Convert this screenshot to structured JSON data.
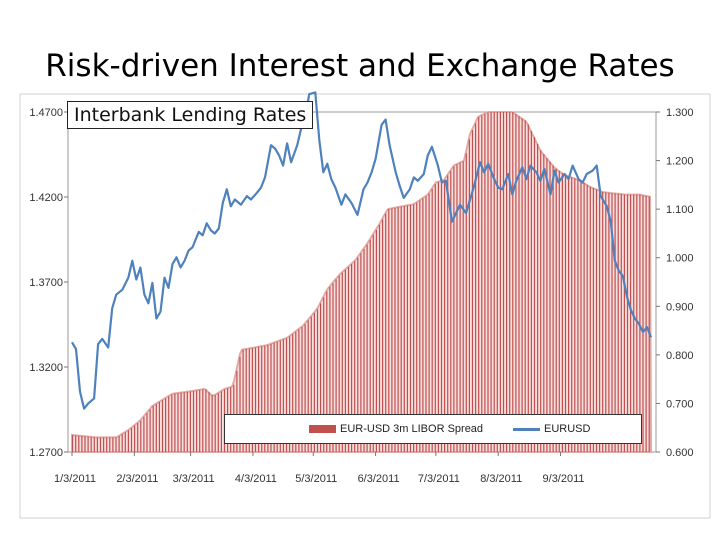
{
  "slide_title": "Risk-driven Interest and Exchange Rates",
  "chart_data": {
    "type": "bar",
    "title": "Interbank Lending Rates",
    "x_ticks": [
      "1/3/2011",
      "2/3/2011",
      "3/3/2011",
      "4/3/2011",
      "5/3/2011",
      "6/3/2011",
      "7/3/2011",
      "8/3/2011",
      "9/3/2011"
    ],
    "left_axis": {
      "ticks": [
        "1.2700",
        "1.3200",
        "1.3700",
        "1.4200",
        "1.4700"
      ],
      "ylim": [
        1.27,
        1.47
      ]
    },
    "right_axis": {
      "ticks": [
        "0.600",
        "0.700",
        "0.800",
        "0.900",
        "1.000",
        "1.100",
        "1.200",
        "1.300"
      ],
      "ylim": [
        0.6,
        1.3
      ]
    },
    "legend_position": "bottom-center",
    "grid": false,
    "series": [
      {
        "name": "EUR-USD 3m LIBOR Spread",
        "type": "bar",
        "axis": "right",
        "color": "#c0504d",
        "points": [
          [
            "2011-01-03",
            0.635
          ],
          [
            "2011-01-15",
            0.63
          ],
          [
            "2011-01-25",
            0.63
          ],
          [
            "2011-01-31",
            0.645
          ],
          [
            "2011-02-06",
            0.665
          ],
          [
            "2011-02-12",
            0.695
          ],
          [
            "2011-02-22",
            0.72
          ],
          [
            "2011-03-03",
            0.725
          ],
          [
            "2011-03-10",
            0.73
          ],
          [
            "2011-03-14",
            0.715
          ],
          [
            "2011-03-20",
            0.73
          ],
          [
            "2011-03-24",
            0.735
          ],
          [
            "2011-03-28",
            0.81
          ],
          [
            "2011-04-10",
            0.82
          ],
          [
            "2011-04-20",
            0.835
          ],
          [
            "2011-04-28",
            0.86
          ],
          [
            "2011-05-05",
            0.895
          ],
          [
            "2011-05-10",
            0.935
          ],
          [
            "2011-05-16",
            0.965
          ],
          [
            "2011-05-24",
            0.995
          ],
          [
            "2011-05-30",
            1.03
          ],
          [
            "2011-06-05",
            1.07
          ],
          [
            "2011-06-09",
            1.1
          ],
          [
            "2011-06-15",
            1.105
          ],
          [
            "2011-06-22",
            1.11
          ],
          [
            "2011-06-29",
            1.13
          ],
          [
            "2011-07-03",
            1.155
          ],
          [
            "2011-07-07",
            1.16
          ],
          [
            "2011-07-12",
            1.19
          ],
          [
            "2011-07-17",
            1.2
          ],
          [
            "2011-07-20",
            1.255
          ],
          [
            "2011-07-24",
            1.29
          ],
          [
            "2011-07-29",
            1.3
          ],
          [
            "2011-08-05",
            1.3
          ],
          [
            "2011-08-10",
            1.3
          ],
          [
            "2011-08-17",
            1.28
          ],
          [
            "2011-08-24",
            1.22
          ],
          [
            "2011-08-31",
            1.185
          ],
          [
            "2011-09-05",
            1.17
          ],
          [
            "2011-09-12",
            1.16
          ],
          [
            "2011-09-18",
            1.145
          ],
          [
            "2011-09-24",
            1.135
          ],
          [
            "2011-10-05",
            1.13
          ],
          [
            "2011-10-12",
            1.13
          ],
          [
            "2011-10-18",
            1.125
          ]
        ]
      },
      {
        "name": "EURUSD",
        "type": "line",
        "axis": "left",
        "color": "#4f81bd",
        "points": [
          [
            "2011-01-03",
            1.3345
          ],
          [
            "2011-01-05",
            1.3305
          ],
          [
            "2011-01-07",
            1.3055
          ],
          [
            "2011-01-09",
            1.2955
          ],
          [
            "2011-01-11",
            1.2985
          ],
          [
            "2011-01-14",
            1.3015
          ],
          [
            "2011-01-16",
            1.3335
          ],
          [
            "2011-01-18",
            1.3365
          ],
          [
            "2011-01-21",
            1.3315
          ],
          [
            "2011-01-23",
            1.3545
          ],
          [
            "2011-01-25",
            1.3625
          ],
          [
            "2011-01-28",
            1.3655
          ],
          [
            "2011-01-31",
            1.3725
          ],
          [
            "2011-02-02",
            1.3825
          ],
          [
            "2011-02-04",
            1.3715
          ],
          [
            "2011-02-06",
            1.3785
          ],
          [
            "2011-02-08",
            1.3625
          ],
          [
            "2011-02-10",
            1.3575
          ],
          [
            "2011-02-12",
            1.3695
          ],
          [
            "2011-02-14",
            1.3485
          ],
          [
            "2011-02-16",
            1.3525
          ],
          [
            "2011-02-18",
            1.3725
          ],
          [
            "2011-02-20",
            1.3665
          ],
          [
            "2011-02-22",
            1.3805
          ],
          [
            "2011-02-24",
            1.3845
          ],
          [
            "2011-02-26",
            1.3785
          ],
          [
            "2011-02-28",
            1.3825
          ],
          [
            "2011-03-02",
            1.3885
          ],
          [
            "2011-03-04",
            1.3905
          ],
          [
            "2011-03-07",
            1.3995
          ],
          [
            "2011-03-09",
            1.3975
          ],
          [
            "2011-03-11",
            1.4045
          ],
          [
            "2011-03-13",
            1.4005
          ],
          [
            "2011-03-15",
            1.3985
          ],
          [
            "2011-03-17",
            1.4015
          ],
          [
            "2011-03-19",
            1.4165
          ],
          [
            "2011-03-21",
            1.4245
          ],
          [
            "2011-03-23",
            1.4145
          ],
          [
            "2011-03-25",
            1.4185
          ],
          [
            "2011-03-28",
            1.4155
          ],
          [
            "2011-03-31",
            1.4205
          ],
          [
            "2011-04-02",
            1.4185
          ],
          [
            "2011-04-05",
            1.4225
          ],
          [
            "2011-04-07",
            1.4255
          ],
          [
            "2011-04-09",
            1.4315
          ],
          [
            "2011-04-12",
            1.4505
          ],
          [
            "2011-04-14",
            1.4485
          ],
          [
            "2011-04-16",
            1.4445
          ],
          [
            "2011-04-18",
            1.4385
          ],
          [
            "2011-04-20",
            1.4515
          ],
          [
            "2011-04-22",
            1.4405
          ],
          [
            "2011-04-25",
            1.4505
          ],
          [
            "2011-04-27",
            1.4605
          ],
          [
            "2011-04-29",
            1.4665
          ],
          [
            "2011-05-01",
            1.4805
          ],
          [
            "2011-05-04",
            1.4815
          ],
          [
            "2011-05-06",
            1.4535
          ],
          [
            "2011-05-08",
            1.4345
          ],
          [
            "2011-05-10",
            1.4395
          ],
          [
            "2011-05-12",
            1.4305
          ],
          [
            "2011-05-14",
            1.4255
          ],
          [
            "2011-05-17",
            1.4155
          ],
          [
            "2011-05-19",
            1.4215
          ],
          [
            "2011-05-22",
            1.4165
          ],
          [
            "2011-05-25",
            1.4095
          ],
          [
            "2011-05-28",
            1.4245
          ],
          [
            "2011-05-30",
            1.4285
          ],
          [
            "2011-06-01",
            1.4345
          ],
          [
            "2011-06-03",
            1.4425
          ],
          [
            "2011-06-06",
            1.4625
          ],
          [
            "2011-06-08",
            1.4655
          ],
          [
            "2011-06-10",
            1.4505
          ],
          [
            "2011-06-13",
            1.4345
          ],
          [
            "2011-06-15",
            1.4265
          ],
          [
            "2011-06-17",
            1.4195
          ],
          [
            "2011-06-20",
            1.4245
          ],
          [
            "2011-06-22",
            1.4315
          ],
          [
            "2011-06-24",
            1.4295
          ],
          [
            "2011-06-27",
            1.4335
          ],
          [
            "2011-06-29",
            1.4445
          ],
          [
            "2011-07-01",
            1.4495
          ],
          [
            "2011-07-04",
            1.4385
          ],
          [
            "2011-07-06",
            1.4285
          ],
          [
            "2011-07-08",
            1.4295
          ],
          [
            "2011-07-11",
            1.4055
          ],
          [
            "2011-07-13",
            1.4105
          ],
          [
            "2011-07-15",
            1.4155
          ],
          [
            "2011-07-18",
            1.4105
          ],
          [
            "2011-07-20",
            1.4185
          ],
          [
            "2011-07-22",
            1.4265
          ],
          [
            "2011-07-25",
            1.4405
          ],
          [
            "2011-07-27",
            1.4345
          ],
          [
            "2011-07-29",
            1.4395
          ],
          [
            "2011-08-01",
            1.4305
          ],
          [
            "2011-08-03",
            1.4255
          ],
          [
            "2011-08-05",
            1.4245
          ],
          [
            "2011-08-08",
            1.4335
          ],
          [
            "2011-08-10",
            1.4215
          ],
          [
            "2011-08-12",
            1.4295
          ],
          [
            "2011-08-15",
            1.4375
          ],
          [
            "2011-08-17",
            1.4305
          ],
          [
            "2011-08-19",
            1.4385
          ],
          [
            "2011-08-22",
            1.4345
          ],
          [
            "2011-08-24",
            1.4295
          ],
          [
            "2011-08-26",
            1.4365
          ],
          [
            "2011-08-29",
            1.4215
          ],
          [
            "2011-08-31",
            1.4355
          ],
          [
            "2011-09-02",
            1.4285
          ],
          [
            "2011-09-05",
            1.4335
          ],
          [
            "2011-09-07",
            1.4305
          ],
          [
            "2011-09-09",
            1.4385
          ],
          [
            "2011-09-12",
            1.4305
          ],
          [
            "2011-09-14",
            1.4285
          ],
          [
            "2011-09-16",
            1.4335
          ],
          [
            "2011-09-19",
            1.4355
          ],
          [
            "2011-09-21",
            1.4385
          ],
          [
            "2011-09-23",
            1.4205
          ],
          [
            "2011-09-26",
            1.4145
          ],
          [
            "2011-09-28",
            1.4055
          ],
          [
            "2011-09-30",
            1.3825
          ],
          [
            "2011-10-02",
            1.3765
          ],
          [
            "2011-10-04",
            1.3735
          ],
          [
            "2011-10-06",
            1.3615
          ],
          [
            "2011-10-08",
            1.3535
          ],
          [
            "2011-10-10",
            1.3485
          ],
          [
            "2011-10-12",
            1.3455
          ],
          [
            "2011-10-14",
            1.3405
          ],
          [
            "2011-10-16",
            1.3435
          ],
          [
            "2011-10-18",
            1.3375
          ]
        ]
      }
    ]
  }
}
